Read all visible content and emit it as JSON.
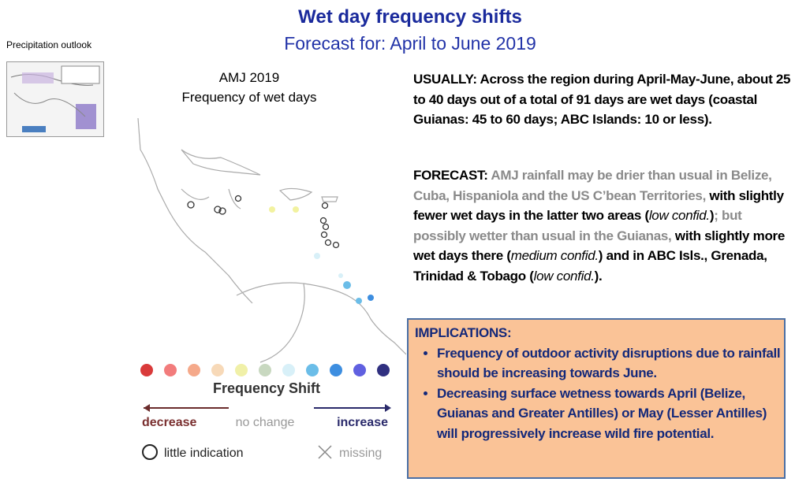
{
  "header": {
    "title": "Wet day frequency shifts",
    "subtitle": "Forecast for: April to June 2019",
    "tag": "Precipitation outlook"
  },
  "map": {
    "title_lines": [
      "AMJ 2019",
      "Frequency of wet days"
    ],
    "legend": {
      "title": "Frequency Shift",
      "decrease": "decrease",
      "no_change": "no change",
      "increase": "increase",
      "little_indication": "little indication",
      "missing": "missing"
    }
  },
  "usually": {
    "runs": [
      "USUALLY:",
      " Across the region during April-May-June, about 25 to 40 days out of a total of 91 days are wet days (coastal Guianas: 45 to 60 days; ABC Islands: 10 or less)."
    ]
  },
  "forecast": {
    "runs": [
      "FORECAST:",
      " AMJ rainfall may be drier than usual in Belize, Cuba, Hispaniola and the US C’bean Territories,",
      " with slightly fewer wet days in the latter two areas (",
      "low confid.",
      ")",
      "; but possibly wetter than usual in the Guianas,",
      " with slightly more wet days there (",
      "medium confid.",
      ") and in ABC Isls., Grenada, Trinidad & Tobago (",
      "low confid.",
      ")."
    ]
  },
  "implications": {
    "title": "IMPLICATIONS:",
    "bullets": [
      "Frequency of outdoor activity disruptions due to rainfall should be increasing towards June.",
      "Decreasing surface wetness towards April (Belize, Guianas and Greater Antilles) or May (Lesser Antilles) will progressively increase wild fire potential."
    ]
  }
}
